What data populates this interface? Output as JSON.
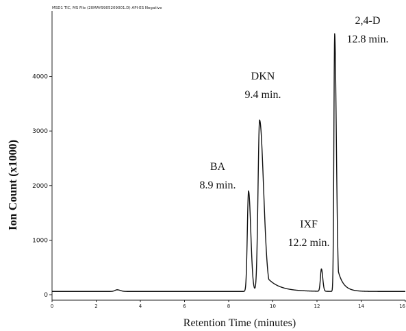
{
  "chart_data": {
    "type": "line",
    "header": "MSD1 TIC, MS File (20MAY9905209001.D)  API-ES Negative",
    "xlabel": "Retention Time (minutes)",
    "ylabel": "Ion Count (x1000)",
    "xlim": [
      0,
      16
    ],
    "ylim": [
      -100,
      5200
    ],
    "x_ticks": [
      0,
      2,
      4,
      6,
      8,
      10,
      12,
      14,
      16
    ],
    "x_tick_labels": [
      "0",
      "2",
      "4",
      "6",
      "8",
      "10",
      "12",
      "14",
      "16"
    ],
    "y_ticks": [
      0,
      1000,
      2000,
      3000,
      4000
    ],
    "grid": false,
    "baseline": 60,
    "peaks": [
      {
        "rt": 2.95,
        "height": 90
      },
      {
        "rt": 8.9,
        "height": 1900
      },
      {
        "rt": 9.4,
        "height": 3200
      },
      {
        "rt": 12.2,
        "height": 470
      },
      {
        "rt": 12.8,
        "height": 4780
      }
    ],
    "annotations": [
      {
        "name": "BA",
        "time": "8.9 min."
      },
      {
        "name": "DKN",
        "time": "9.4 min."
      },
      {
        "name": "IXF",
        "time": "12.2 min."
      },
      {
        "name": "2,4-D",
        "time": "12.8 min."
      }
    ]
  }
}
